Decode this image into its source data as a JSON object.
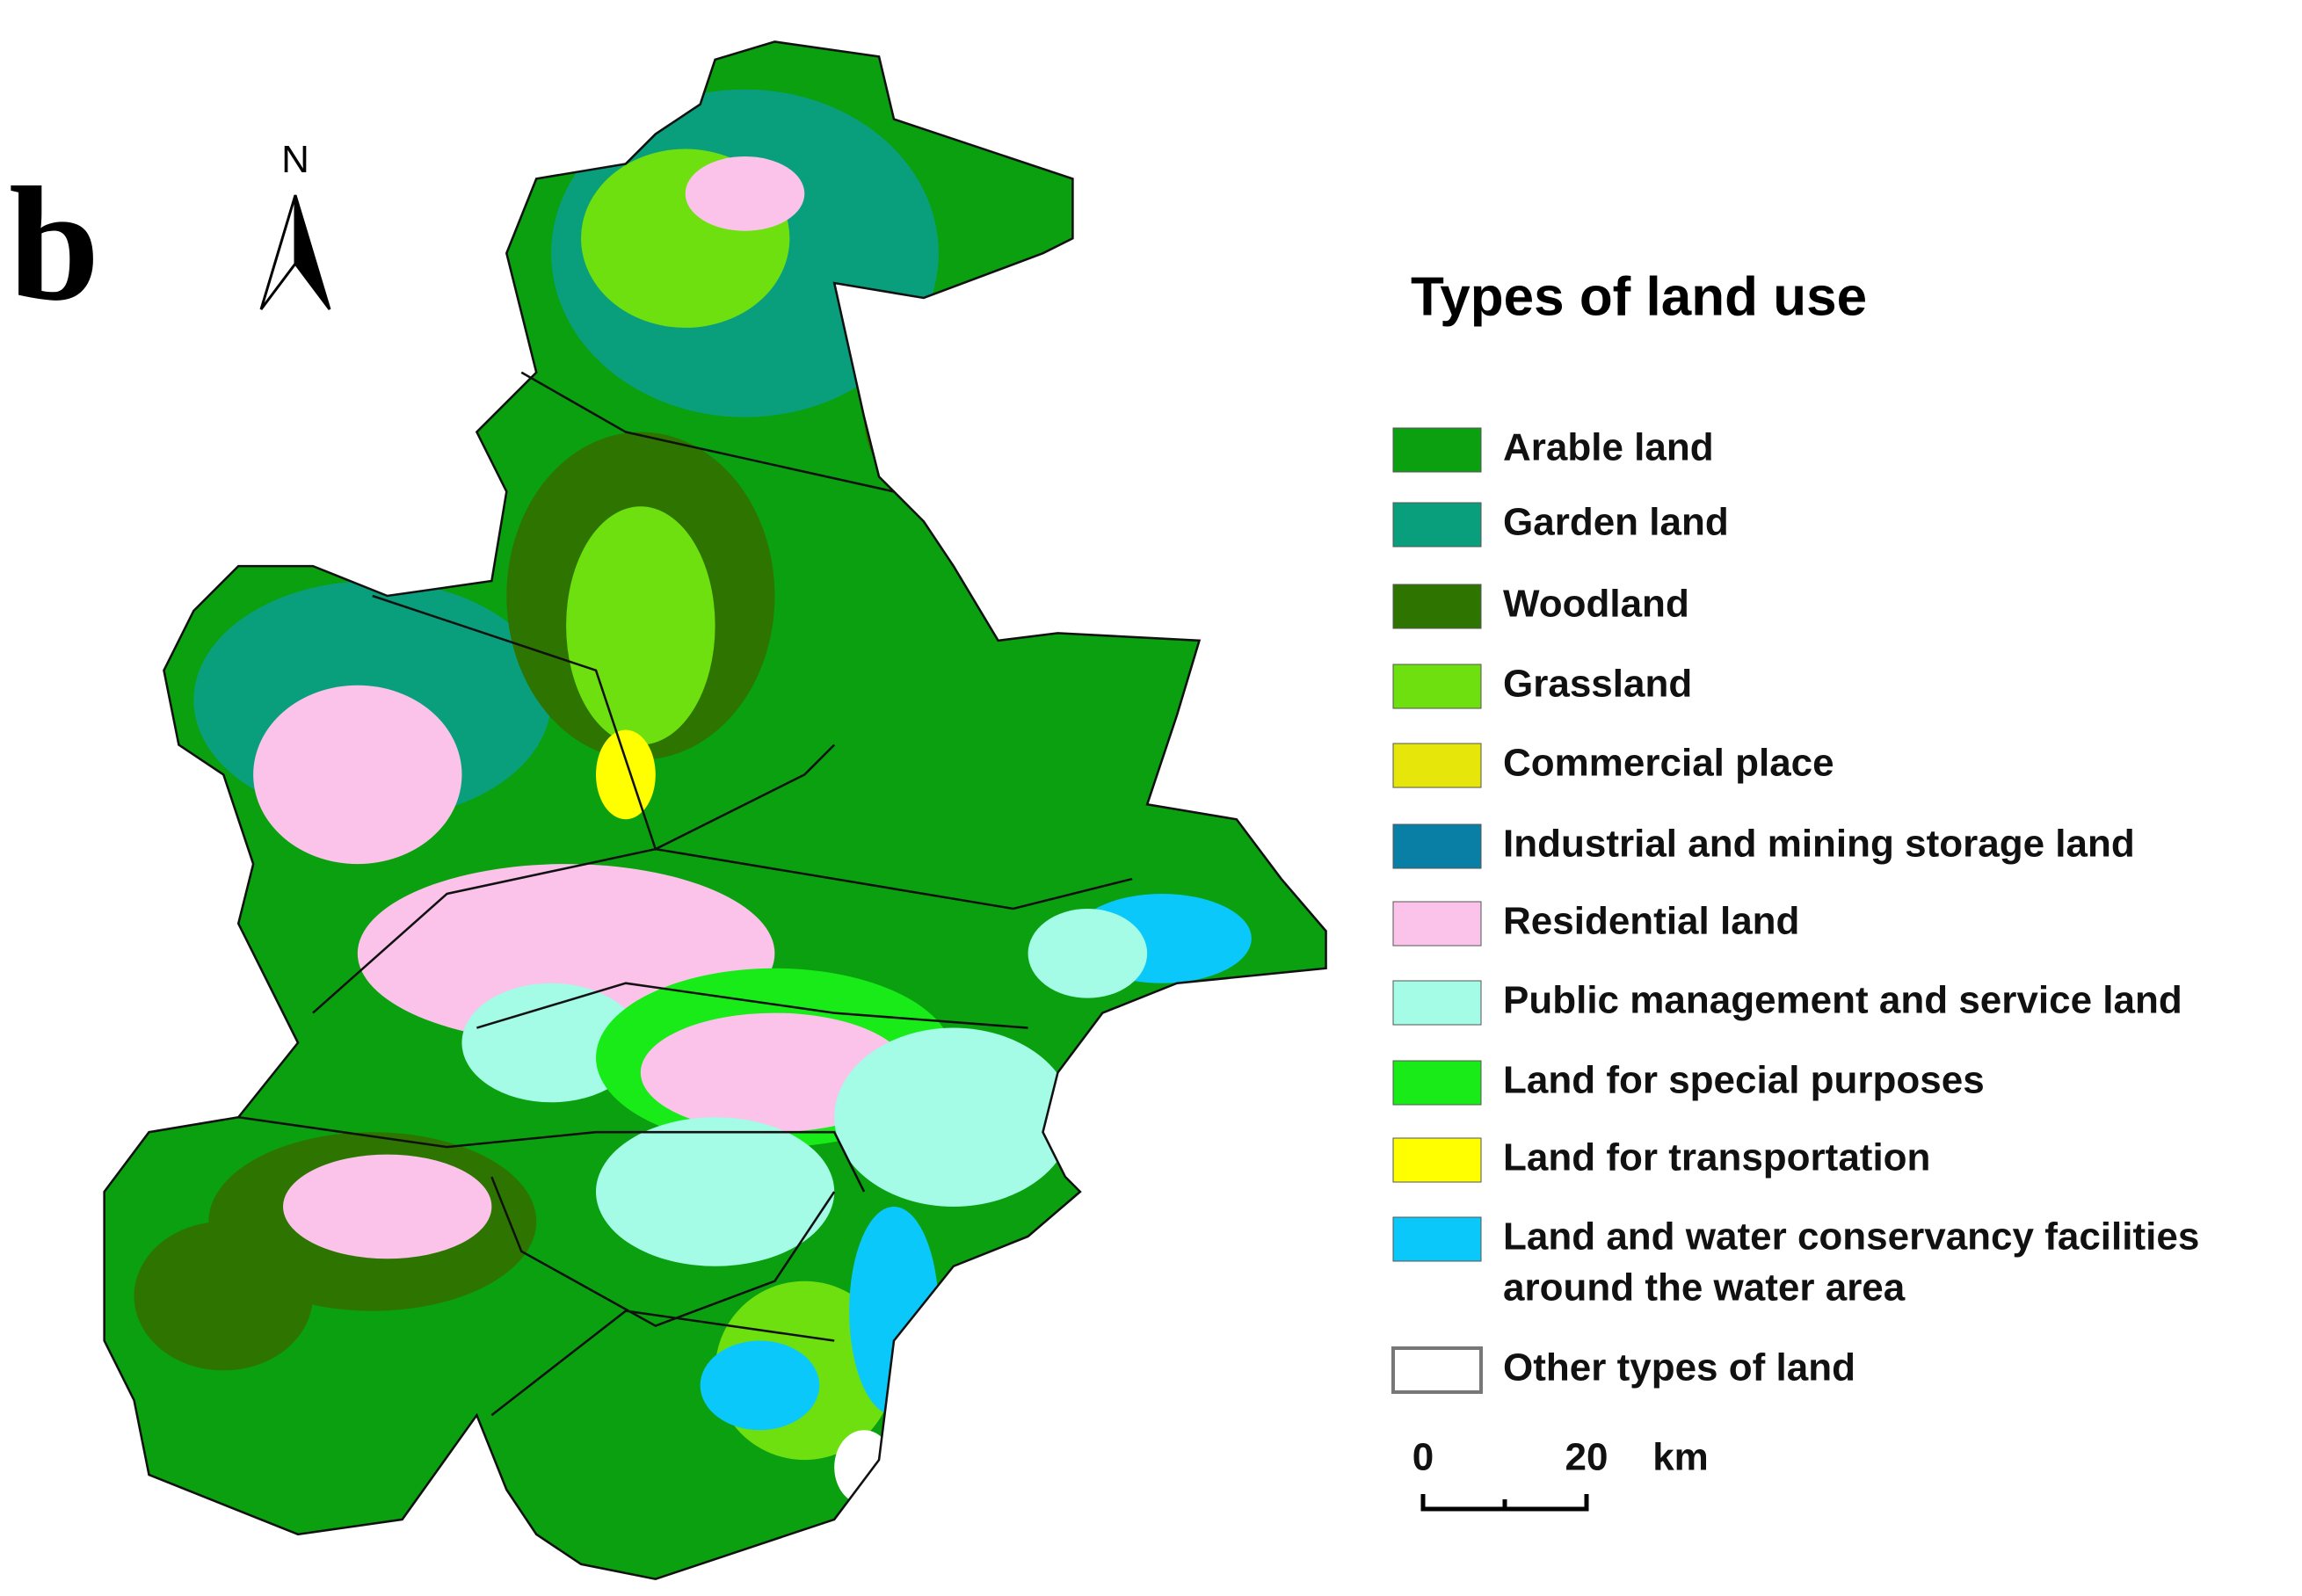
{
  "panel_label": "b",
  "north_arrow": "N",
  "legend": {
    "title": "Types of land use",
    "items": [
      {
        "label": [
          "Arable land"
        ],
        "color": "#0aa00f"
      },
      {
        "label": [
          "Garden land"
        ],
        "color": "#0a9f7c"
      },
      {
        "label": [
          "Woodland"
        ],
        "color": "#2d7500"
      },
      {
        "label": [
          "Grassland"
        ],
        "color": "#6fe00f"
      },
      {
        "label": [
          "Commercial place"
        ],
        "color": "#e6e60a"
      },
      {
        "label": [
          "Industrial and mining storage land"
        ],
        "color": "#0a7fa6"
      },
      {
        "label": [
          "Residential land"
        ],
        "color": "#fbc3ea"
      },
      {
        "label": [
          "Public management and service land"
        ],
        "color": "#a4fbe6"
      },
      {
        "label": [
          "Land for special purposes"
        ],
        "color": "#19eb19"
      },
      {
        "label": [
          "Land for transportation"
        ],
        "color": "#ffff00"
      },
      {
        "label": [
          "Land and water conservancy facilities",
          "around the water area"
        ],
        "color": "#0ac8fa"
      },
      {
        "label": [
          "Other types of land"
        ],
        "color": "#ffffff"
      }
    ]
  },
  "scale_bar": {
    "labels": [
      "0",
      "20"
    ],
    "unit": "km"
  }
}
